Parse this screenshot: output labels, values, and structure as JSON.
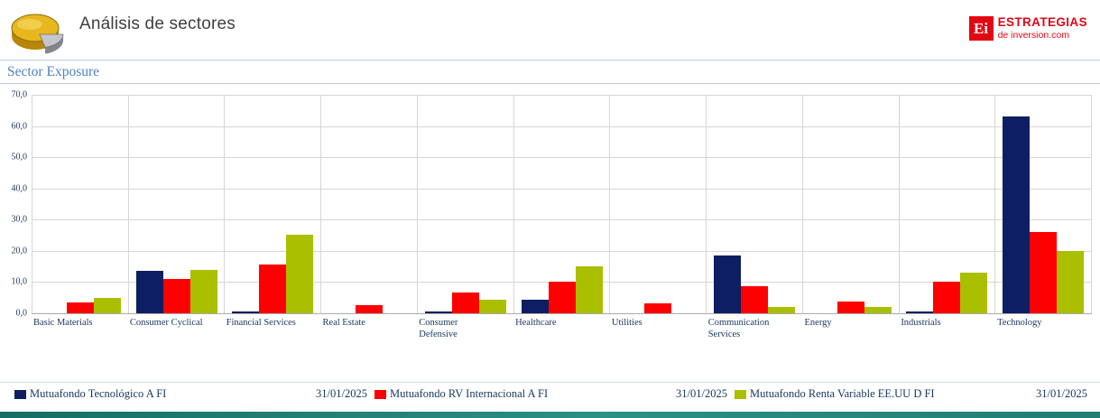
{
  "header": {
    "title": "Análisis de sectores",
    "logo": {
      "badge": "Ei",
      "line1": "ESTRATEGIAS",
      "line2": "de inversion.com"
    }
  },
  "section": {
    "title": "Sector Exposure"
  },
  "chart_data": {
    "type": "bar",
    "title": "Sector Exposure",
    "categories": [
      "Basic Materials",
      "Consumer Cyclical",
      "Financial Services",
      "Real Estate",
      "Consumer Defensive",
      "Healthcare",
      "Utilities",
      "Communication Services",
      "Energy",
      "Industrials",
      "Technology"
    ],
    "series": [
      {
        "name": "Mutuafondo Tecnológico A FI",
        "date": "31/01/2025",
        "color": "#0d1e63",
        "values": [
          0,
          13.5,
          0.7,
          0,
          0.7,
          4.4,
          0,
          18.4,
          0,
          0.7,
          63
        ]
      },
      {
        "name": "Mutuafondo RV Internacional A FI",
        "date": "31/01/2025",
        "color": "#ff0000",
        "values": [
          3.5,
          11,
          15.7,
          2.5,
          6.8,
          10.1,
          3.2,
          8.7,
          3.8,
          10,
          26
        ]
      },
      {
        "name": "Mutuafondo Renta Variable EE.UU D FI",
        "date": "31/01/2025",
        "color": "#a9bf00",
        "values": [
          5,
          14,
          25.2,
          0,
          4.3,
          15,
          0,
          2,
          2,
          13,
          20
        ]
      }
    ],
    "ylim": [
      0,
      70
    ],
    "yticks": [
      {
        "label": "70,0",
        "value": 70
      },
      {
        "label": "60,0",
        "value": 60
      },
      {
        "label": "50,0",
        "value": 50
      },
      {
        "label": "40,0",
        "value": 40
      },
      {
        "label": "30,0",
        "value": 30
      },
      {
        "label": "20,0",
        "value": 20
      },
      {
        "label": "10,0",
        "value": 10
      },
      {
        "label": "0,0",
        "value": 0
      }
    ],
    "grid": true,
    "legend_position": "bottom"
  },
  "theme": {
    "brand_red": "#e30613",
    "title_blue": "#4f81bd",
    "text_navy": "#17375e",
    "rule_blue": "#b9cde5",
    "footer_teal": "#1e7f73",
    "grid_gray": "#d6d6d6"
  }
}
